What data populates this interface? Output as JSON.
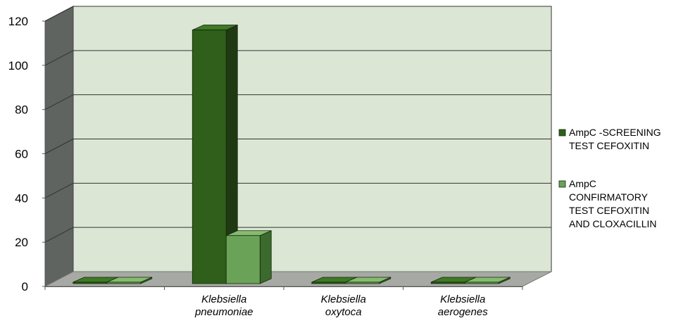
{
  "chart_data": {
    "type": "bar",
    "title": "",
    "xlabel": "",
    "ylabel": "",
    "ylim": [
      0,
      120
    ],
    "yticks": [
      0,
      20,
      40,
      60,
      80,
      100,
      120
    ],
    "ytick_labels": [
      "0",
      "20",
      "40",
      "60",
      "80",
      "100",
      "120"
    ],
    "grid": true,
    "legend_position": "right",
    "three_d": true,
    "categories": [
      [
        "",
        ""
      ],
      [
        "Klebsiella",
        "pneumoniae"
      ],
      [
        "Klebsiella",
        "oxytoca"
      ],
      [
        "Klebsiella",
        "aerogenes"
      ]
    ],
    "series": [
      {
        "name": "AmpC -SCREENING TEST CEFOXITIN",
        "legend_lines": [
          "AmpC -SCREENING",
          "TEST CEFOXITIN"
        ],
        "values": [
          0,
          116,
          0,
          0
        ],
        "color": "#2f5f1a",
        "top_color": "#3f7a25",
        "side_color": "#1f3a12"
      },
      {
        "name": "AmpC CONFIRMATORY TEST CEFOXITIN AND CLOXACILLIN",
        "legend_lines": [
          "AmpC",
          "CONFIRMATORY",
          "TEST CEFOXITIN",
          "AND CLOXACILLIN"
        ],
        "values": [
          0,
          23,
          0,
          0
        ],
        "color": "#6aa257",
        "top_color": "#86bb70",
        "side_color": "#3a6a2c"
      }
    ],
    "colors": {
      "plot_back": "#dce6d4",
      "plot_left_wall": "#5f6460",
      "plot_floor": "#a7aaa4",
      "gridline": "#333333",
      "axis": "#555555"
    }
  }
}
